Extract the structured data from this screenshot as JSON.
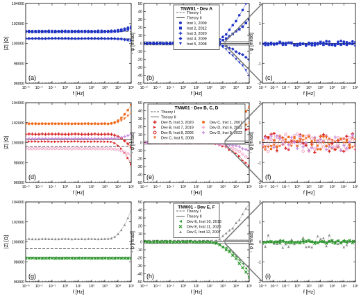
{
  "colors": {
    "blue": "#1f33c4",
    "orange": "#ef6a1c",
    "red": "#d81e1e",
    "pink": "#f0a8c8",
    "violet": "#c98fe0",
    "green": "#2f9a2f",
    "gray": "#8a8a8a",
    "zoom_connector": "#7a7a7a",
    "axis": "#000000"
  },
  "chart_data": [
    {
      "panel": "(a)",
      "type": "scatter",
      "xscale": "log",
      "xlim": [
        0.001,
        100000
      ],
      "ylim": [
        96000,
        104000
      ],
      "xlabel": "f [Hz]",
      "ylabel": "|Z| [Ω]",
      "xticks": [
        "10⁻³",
        "10⁻²",
        "10⁻¹",
        "10⁰",
        "10¹",
        "10²",
        "10³",
        "10⁴",
        "10⁵"
      ],
      "yticks": [
        "96000",
        "98000",
        "100000",
        "102000",
        "104000"
      ],
      "series": [
        {
          "color": "blue",
          "marker": "circle",
          "level": 101250,
          "end": [
            101300,
            101700
          ]
        },
        {
          "color": "blue",
          "marker": "square",
          "level": 101150,
          "end": [
            101200,
            101500
          ]
        },
        {
          "color": "blue",
          "marker": "diamond",
          "level": 100500,
          "end": [
            100500,
            100300
          ]
        },
        {
          "color": "blue",
          "marker": "triangle-down",
          "level": 100430,
          "end": [
            100400,
            100200
          ]
        }
      ],
      "theory": [
        {
          "style": "dashed",
          "level": 101200
        },
        {
          "style": "solid",
          "level": 100450
        }
      ]
    },
    {
      "panel": "(b)",
      "type": "scatter",
      "xscale": "log",
      "xlim": [
        0.001,
        100000
      ],
      "ylim": [
        -50,
        50
      ],
      "xlabel": "f [Hz]",
      "ylabel": "- φ [mrad]",
      "xticks": [
        "10⁻³",
        "10⁻²",
        "10⁻¹",
        "10⁰",
        "10¹",
        "10²",
        "10³",
        "10⁴",
        "10⁵"
      ],
      "yticks": [
        "-50",
        "-40",
        "-30",
        "-20",
        "-10",
        "0",
        "10",
        "20",
        "30",
        "40",
        "50"
      ],
      "legend": {
        "position": "top-center",
        "title": "TNW01 - Dev A",
        "entries": [
          {
            "label": "Theory I",
            "style": "dashed"
          },
          {
            "label": "Theory II",
            "style": "solid"
          },
          {
            "label": "Inst 1, 2009",
            "marker": "circle",
            "color": "blue"
          },
          {
            "label": "Inst 2, 2012",
            "marker": "square",
            "color": "blue"
          },
          {
            "label": "Inst 3, 2020",
            "marker": "plus",
            "color": "blue"
          },
          {
            "label": "Inst 4, 2009",
            "marker": "diamond",
            "color": "blue"
          },
          {
            "label": "Inst 5, 2008",
            "marker": "triangle-down",
            "color": "blue"
          }
        ]
      },
      "fan": [
        {
          "color": "blue",
          "marker": "circle",
          "end": 58
        },
        {
          "color": "blue",
          "marker": "square",
          "end": 30
        },
        {
          "color": "blue",
          "marker": "diamond",
          "end": -20
        },
        {
          "color": "blue",
          "marker": "triangle-down",
          "end": -40
        }
      ]
    },
    {
      "panel": "(c)",
      "type": "scatter",
      "xscale": "log",
      "xlim": [
        0.001,
        100000
      ],
      "ylim": [
        -2,
        2
      ],
      "xlabel": "f [Hz]",
      "ylabel": "- φ [mrad]",
      "xticks": [
        "10⁻³",
        "10⁻²",
        "10⁻¹",
        "10⁰",
        "10¹",
        "10²",
        "10³",
        "10⁴",
        "10⁵"
      ],
      "yticks": [
        "-2",
        "-1",
        "0",
        "1",
        "2"
      ],
      "noise": [
        {
          "color": "blue",
          "marker": "circle",
          "amp": 0.12
        },
        {
          "color": "blue",
          "marker": "square",
          "amp": 0.08
        }
      ]
    },
    {
      "panel": "(d)",
      "type": "scatter",
      "xscale": "log",
      "xlim": [
        0.001,
        100000
      ],
      "ylim": [
        96000,
        104000
      ],
      "xlabel": "f [Hz]",
      "ylabel": "|Z| [Ω]",
      "xticks": [
        "10⁻³",
        "10⁻²",
        "10⁻¹",
        "10⁰",
        "10¹",
        "10²",
        "10³",
        "10⁴",
        "10⁵"
      ],
      "yticks": [
        "96000",
        "98000",
        "100000",
        "102000",
        "104000"
      ],
      "series": [
        {
          "color": "orange",
          "marker": "circle",
          "level": 101900,
          "end": [
            102200,
            103800
          ]
        },
        {
          "color": "orange",
          "marker": "triangle-down",
          "level": 101850,
          "end": [
            101900,
            103000
          ]
        },
        {
          "color": "red",
          "marker": "plus",
          "level": 100850,
          "end": [
            100800,
            99500
          ]
        },
        {
          "color": "red",
          "marker": "triangle-right",
          "level": 100100,
          "end": [
            100000,
            97800
          ]
        },
        {
          "color": "pink",
          "marker": "circle-open",
          "level": 99400,
          "end": [
            99300,
            98700
          ]
        },
        {
          "color": "violet",
          "marker": "plus",
          "level": 100400,
          "end": [
            100400,
            100800
          ]
        }
      ],
      "theory": [
        {
          "style": "dashed",
          "level": 99600
        },
        {
          "style": "solid",
          "level": 100300
        }
      ]
    },
    {
      "panel": "(e)",
      "type": "scatter",
      "xscale": "log",
      "xlim": [
        0.001,
        100000
      ],
      "ylim": [
        -50,
        50
      ],
      "xlabel": "f [Hz]",
      "ylabel": "- φ [mrad]",
      "xticks": [
        "10⁻³",
        "10⁻²",
        "10⁻¹",
        "10⁰",
        "10¹",
        "10²",
        "10³",
        "10⁴",
        "10⁵"
      ],
      "yticks": [
        "-50",
        "-40",
        "-30",
        "-20",
        "-10",
        "0",
        "10",
        "20",
        "30",
        "40",
        "50"
      ],
      "legend": {
        "position": "top-center",
        "title": "TNW01 - Dev B, C, D",
        "entries": [
          {
            "label": "Theory I",
            "style": "dashed"
          },
          {
            "label": "Theory II",
            "style": "solid"
          },
          {
            "label": "Dev B, Inst 3, 2020",
            "marker": "plus",
            "color": "red"
          },
          {
            "label": "Dev B, Inst 7, 2019",
            "marker": "triangle-right",
            "color": "red"
          },
          {
            "label": "Dev B, Inst 8, 2006",
            "marker": "circle-open",
            "color": "red"
          },
          {
            "label": "Dev C, Inst 5, 2008",
            "marker": "triangle-down",
            "color": "orange"
          },
          {
            "label": "Dev C, Inst 1, 2007",
            "marker": "circle",
            "color": "orange"
          },
          {
            "label": "Dev D, Inst 6, 2022",
            "marker": "plus",
            "color": "pink"
          },
          {
            "label": "Dev D, Inst 9, 2022",
            "marker": "plus",
            "color": "violet"
          }
        ]
      },
      "fan": [
        {
          "color": "orange",
          "marker": "circle",
          "end": 45
        },
        {
          "color": "orange",
          "marker": "triangle-down",
          "end": 25
        },
        {
          "color": "red",
          "marker": "plus",
          "end": 18
        },
        {
          "color": "red",
          "marker": "triangle-right",
          "end": -30
        },
        {
          "color": "pink",
          "marker": "circle-open",
          "end": -20
        },
        {
          "color": "violet",
          "marker": "plus",
          "end": -10
        }
      ]
    },
    {
      "panel": "(f)",
      "type": "scatter",
      "xscale": "log",
      "xlim": [
        0.001,
        100000
      ],
      "ylim": [
        -2,
        2
      ],
      "xlabel": "f [Hz]",
      "ylabel": "- φ [mrad]",
      "xticks": [
        "10⁻³",
        "10⁻²",
        "10⁻¹",
        "10⁰",
        "10¹",
        "10²",
        "10³",
        "10⁴",
        "10⁵"
      ],
      "yticks": [
        "-2",
        "-1",
        "0",
        "1",
        "2"
      ],
      "noise": [
        {
          "color": "orange",
          "marker": "circle",
          "amp": 0.35
        },
        {
          "color": "red",
          "marker": "plus",
          "amp": 0.5
        },
        {
          "color": "pink",
          "marker": "circle-open",
          "amp": 0.45
        },
        {
          "color": "violet",
          "marker": "plus",
          "amp": 0.4
        },
        {
          "color": "orange",
          "marker": "triangle-down",
          "amp": 0.3
        }
      ]
    },
    {
      "panel": "(g)",
      "type": "scatter",
      "xscale": "log",
      "xlim": [
        0.001,
        100000
      ],
      "ylim": [
        96000,
        104000
      ],
      "xlabel": "f [Hz]",
      "ylabel": "|Z| [Ω]",
      "xticks": [
        "10⁻³",
        "10⁻²",
        "10⁻¹",
        "10⁰",
        "10¹",
        "10²",
        "10³",
        "10⁴",
        "10⁵"
      ],
      "yticks": [
        "96000",
        "98000",
        "100000",
        "102000",
        "104000"
      ],
      "series": [
        {
          "color": "gray",
          "marker": "triangle-up",
          "level": 100300,
          "end": [
            100600,
            103200
          ]
        },
        {
          "color": "green",
          "marker": "triangle-left",
          "level": 98400,
          "end": [
            98400,
            98400
          ]
        },
        {
          "color": "green",
          "marker": "cross",
          "level": 98350,
          "end": [
            98350,
            98350
          ]
        }
      ],
      "theory": [
        {
          "style": "dashed",
          "level": 99300
        },
        {
          "style": "solid",
          "level": 98450
        }
      ]
    },
    {
      "panel": "(h)",
      "type": "scatter",
      "xscale": "log",
      "xlim": [
        0.001,
        100000
      ],
      "ylim": [
        -50,
        50
      ],
      "xlabel": "f [Hz]",
      "ylabel": "- φ [mrad]",
      "xticks": [
        "10⁻³",
        "10⁻²",
        "10⁻¹",
        "10⁰",
        "10¹",
        "10²",
        "10³",
        "10⁴",
        "10⁵"
      ],
      "yticks": [
        "-50",
        "-40",
        "-30",
        "-20",
        "-10",
        "0",
        "10",
        "20",
        "30",
        "40",
        "50"
      ],
      "legend": {
        "position": "top-center",
        "title": "TNW01 - Dev E, F",
        "entries": [
          {
            "label": "Theory I",
            "style": "dashed"
          },
          {
            "label": "Theory II",
            "style": "solid"
          },
          {
            "label": "Dev E, Inst 10, 2018",
            "marker": "triangle-left",
            "color": "green"
          },
          {
            "label": "Dev E, Inst 11, 2020",
            "marker": "cross",
            "color": "green"
          },
          {
            "label": "Dev F, Inst 12, 2007",
            "marker": "triangle-up",
            "color": "gray"
          }
        ]
      },
      "fan": [
        {
          "color": "gray",
          "marker": "triangle-up",
          "end": 48
        },
        {
          "color": "green",
          "marker": "triangle-left",
          "end": -38
        },
        {
          "color": "green",
          "marker": "cross",
          "end": -45
        }
      ]
    },
    {
      "panel": "(i)",
      "type": "scatter",
      "xscale": "log",
      "xlim": [
        0.001,
        100000
      ],
      "ylim": [
        -2,
        2
      ],
      "xlabel": "f [Hz]",
      "ylabel": "- φ [mrad]",
      "xticks": [
        "10⁻³",
        "10⁻²",
        "10⁻¹",
        "10⁰",
        "10¹",
        "10²",
        "10³",
        "10⁴",
        "10⁵"
      ],
      "yticks": [
        "-2",
        "-1",
        "0",
        "1",
        "2"
      ],
      "noise": [
        {
          "color": "gray",
          "marker": "triangle-up",
          "amp": 0.35
        },
        {
          "color": "green",
          "marker": "triangle-left",
          "amp": 0.08
        },
        {
          "color": "green",
          "marker": "cross",
          "amp": 0.08
        }
      ]
    }
  ]
}
